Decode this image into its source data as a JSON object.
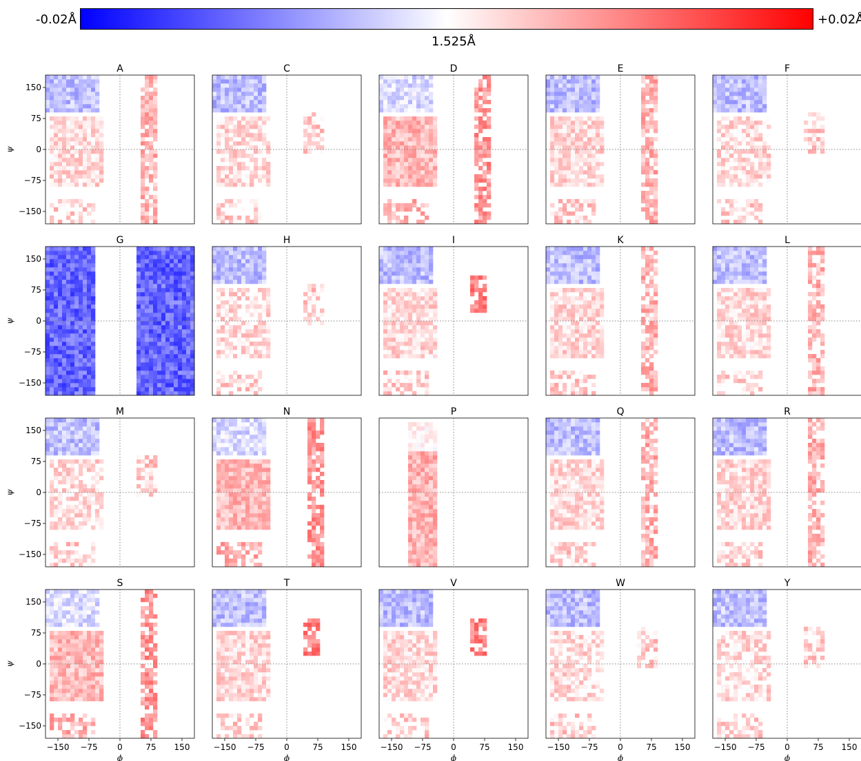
{
  "colorbar": {
    "min_label": "-0.02Å",
    "max_label": "+0.02Å",
    "center_label": "1.525Å",
    "colors": {
      "low": "#0000ff",
      "mid": "#ffffff",
      "high": "#ff0000"
    }
  },
  "chart_data": {
    "type": "heatmap",
    "description_free": true,
    "xlabel": "ϕ",
    "ylabel": "ψ",
    "xlim": [
      -180,
      180
    ],
    "ylim": [
      -180,
      180
    ],
    "x_ticks": [
      -150,
      -75,
      0,
      75,
      150
    ],
    "y_ticks": [
      150,
      75,
      0,
      -75,
      -150
    ],
    "reference_lines": {
      "phi": 0,
      "psi": 0,
      "style": "dotted"
    },
    "color_range": [
      -0.02,
      0.02
    ],
    "panels": [
      {
        "name": "A",
        "profile": "general"
      },
      {
        "name": "C",
        "profile": "sparse"
      },
      {
        "name": "D",
        "profile": "dense-red"
      },
      {
        "name": "E",
        "profile": "general"
      },
      {
        "name": "F",
        "profile": "sparse"
      },
      {
        "name": "G",
        "profile": "glycine"
      },
      {
        "name": "H",
        "profile": "sparse"
      },
      {
        "name": "I",
        "profile": "beta-branched"
      },
      {
        "name": "K",
        "profile": "general"
      },
      {
        "name": "L",
        "profile": "general"
      },
      {
        "name": "M",
        "profile": "sparse"
      },
      {
        "name": "N",
        "profile": "dense-red"
      },
      {
        "name": "P",
        "profile": "proline"
      },
      {
        "name": "Q",
        "profile": "general"
      },
      {
        "name": "R",
        "profile": "general"
      },
      {
        "name": "S",
        "profile": "dense-red"
      },
      {
        "name": "T",
        "profile": "beta-branched"
      },
      {
        "name": "V",
        "profile": "beta-branched"
      },
      {
        "name": "W",
        "profile": "sparse"
      },
      {
        "name": "Y",
        "profile": "sparse"
      }
    ]
  }
}
